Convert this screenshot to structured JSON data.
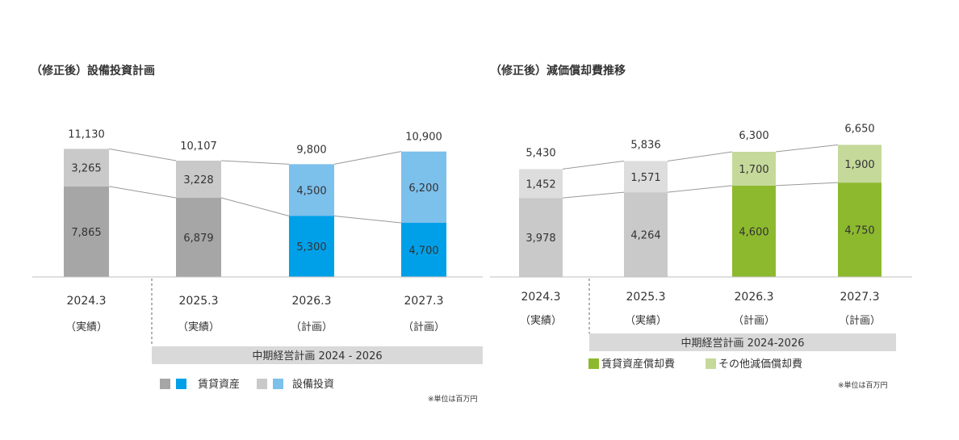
{
  "chart_data": [
    {
      "type": "bar",
      "stacked": true,
      "title": "（修正後）設備投資計画",
      "categories": [
        "2024.3",
        "2025.3",
        "2026.3",
        "2027.3"
      ],
      "category_notes": [
        "（実績）",
        "（実績）",
        "（計画）",
        "（計画）"
      ],
      "series": [
        {
          "name": "賃貸資産",
          "values": [
            7865,
            6879,
            5300,
            4700
          ],
          "colors": [
            "#a6a6a6",
            "#a6a6a6",
            "#00a0e9",
            "#00a0e9"
          ]
        },
        {
          "name": "設備投資",
          "values": [
            3265,
            3228,
            4500,
            6200
          ],
          "colors": [
            "#c9c9c9",
            "#c9c9c9",
            "#7cc0ec",
            "#7cc0ec"
          ]
        }
      ],
      "segment_labels": [
        [
          "7,865",
          "6,879",
          "5,300",
          "4,700"
        ],
        [
          "3,265",
          "3,228",
          "4,500",
          "6,200"
        ]
      ],
      "totals": [
        11130,
        10107,
        9800,
        10900
      ],
      "total_labels": [
        "11,130",
        "10,107",
        "9,800",
        "10,900"
      ],
      "plan_band": "中期経営計画 2024 - 2026",
      "legend": [
        {
          "label": "賃貸資産",
          "swatches": [
            "#a6a6a6",
            "#00a0e9"
          ]
        },
        {
          "label": "設備投資",
          "swatches": [
            "#c9c9c9",
            "#7cc0ec"
          ]
        }
      ],
      "unit_note": "※単位は百万円"
    },
    {
      "type": "bar",
      "stacked": true,
      "title": "（修正後）減価償却費推移",
      "categories": [
        "2024.3",
        "2025.3",
        "2026.3",
        "2027.3"
      ],
      "category_notes": [
        "（実績）",
        "（実績）",
        "（計画）",
        "（計画）"
      ],
      "series": [
        {
          "name": "賃貸資産償却費",
          "values": [
            3978,
            4264,
            4600,
            4750
          ],
          "colors": [
            "#c9c9c9",
            "#c9c9c9",
            "#8db92e",
            "#8db92e"
          ]
        },
        {
          "name": "その他減価償却費",
          "values": [
            1452,
            1571,
            1700,
            1900
          ],
          "colors": [
            "#dddddd",
            "#dddddd",
            "#c5d99a",
            "#c5d99a"
          ]
        }
      ],
      "segment_labels": [
        [
          "3,978",
          "4,264",
          "4,600",
          "4,750"
        ],
        [
          "1,452",
          "1,571",
          "1,700",
          "1,900"
        ]
      ],
      "totals": [
        5430,
        5836,
        6300,
        6650
      ],
      "total_labels": [
        "5,430",
        "5,836",
        "6,300",
        "6,650"
      ],
      "plan_band": "中期経営計画 2024-2026",
      "legend": [
        {
          "label": "賃貸資産償却費",
          "swatches": [
            "#8db92e"
          ]
        },
        {
          "label": "その他減価償却費",
          "swatches": [
            "#c5d99a"
          ]
        }
      ],
      "unit_note": "※単位は百万円"
    }
  ],
  "colors": {
    "connector": "#999999",
    "axis": "#bfbfbf",
    "band": "#d9d9d9",
    "text": "#333333"
  }
}
